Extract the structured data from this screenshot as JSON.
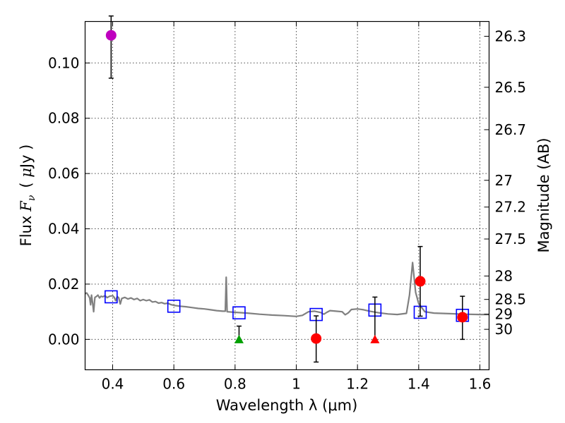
{
  "chart_data": {
    "type": "scatter",
    "xlabel": "Wavelength  λ (μm)",
    "ylabel": "Flux  F_ν  ( μJy )",
    "ylabel_parts": {
      "flux": "Flux",
      "F": "F",
      "nu": "ν",
      "unit_open": "( ",
      "mu": "μ",
      "unit": "Jy )"
    },
    "y2label": "Magnitude (AB)",
    "xlim": [
      0.31,
      1.63
    ],
    "ylim": [
      -0.011,
      0.115
    ],
    "grid": true,
    "x_ticks": [
      {
        "value": 0.4,
        "label": "0.4"
      },
      {
        "value": 0.6,
        "label": "0.6"
      },
      {
        "value": 0.8,
        "label": "0.8"
      },
      {
        "value": 1.0,
        "label": "1"
      },
      {
        "value": 1.2,
        "label": "1.2"
      },
      {
        "value": 1.4,
        "label": "1.4"
      },
      {
        "value": 1.6,
        "label": "1.6"
      }
    ],
    "y_ticks": [
      {
        "value": 0.0,
        "label": "0.00"
      },
      {
        "value": 0.02,
        "label": "0.02"
      },
      {
        "value": 0.04,
        "label": "0.04"
      },
      {
        "value": 0.06,
        "label": "0.06"
      },
      {
        "value": 0.08,
        "label": "0.08"
      },
      {
        "value": 0.1,
        "label": "0.10"
      }
    ],
    "mag_ticks": [
      {
        "mag": 26.3,
        "label": "26.3"
      },
      {
        "mag": 26.5,
        "label": "26.5"
      },
      {
        "mag": 26.7,
        "label": "26.7"
      },
      {
        "mag": 27.0,
        "label": "27"
      },
      {
        "mag": 27.2,
        "label": "27.2"
      },
      {
        "mag": 27.5,
        "label": "27.5"
      },
      {
        "mag": 28.0,
        "label": "28"
      },
      {
        "mag": 28.5,
        "label": "28.5"
      },
      {
        "mag": 29.0,
        "label": "29"
      },
      {
        "mag": 30.0,
        "label": "30"
      }
    ],
    "series": [
      {
        "name": "model_sed",
        "kind": "line",
        "color": "#808080",
        "points": [
          [
            0.31,
            0.0165
          ],
          [
            0.315,
            0.0168
          ],
          [
            0.32,
            0.016
          ],
          [
            0.325,
            0.015
          ],
          [
            0.328,
            0.0125
          ],
          [
            0.331,
            0.016
          ],
          [
            0.335,
            0.0128
          ],
          [
            0.338,
            0.01
          ],
          [
            0.342,
            0.0152
          ],
          [
            0.347,
            0.0155
          ],
          [
            0.352,
            0.016
          ],
          [
            0.357,
            0.015
          ],
          [
            0.362,
            0.0156
          ],
          [
            0.368,
            0.0154
          ],
          [
            0.375,
            0.0158
          ],
          [
            0.382,
            0.0151
          ],
          [
            0.39,
            0.0156
          ],
          [
            0.4,
            0.0158
          ],
          [
            0.405,
            0.0152
          ],
          [
            0.41,
            0.014
          ],
          [
            0.415,
            0.0155
          ],
          [
            0.42,
            0.015
          ],
          [
            0.425,
            0.0128
          ],
          [
            0.43,
            0.0148
          ],
          [
            0.44,
            0.0152
          ],
          [
            0.45,
            0.0146
          ],
          [
            0.46,
            0.015
          ],
          [
            0.47,
            0.0144
          ],
          [
            0.48,
            0.0148
          ],
          [
            0.49,
            0.014
          ],
          [
            0.5,
            0.0144
          ],
          [
            0.51,
            0.014
          ],
          [
            0.52,
            0.0143
          ],
          [
            0.53,
            0.0135
          ],
          [
            0.54,
            0.0137
          ],
          [
            0.55,
            0.0131
          ],
          [
            0.56,
            0.0133
          ],
          [
            0.57,
            0.0129
          ],
          [
            0.58,
            0.0131
          ],
          [
            0.59,
            0.0126
          ],
          [
            0.6,
            0.0123
          ],
          [
            0.62,
            0.012
          ],
          [
            0.64,
            0.0118
          ],
          [
            0.66,
            0.0115
          ],
          [
            0.68,
            0.0112
          ],
          [
            0.7,
            0.011
          ],
          [
            0.72,
            0.0107
          ],
          [
            0.74,
            0.0104
          ],
          [
            0.76,
            0.0102
          ],
          [
            0.768,
            0.0102
          ],
          [
            0.771,
            0.0225
          ],
          [
            0.774,
            0.01
          ],
          [
            0.8,
            0.0098
          ],
          [
            0.84,
            0.0095
          ],
          [
            0.88,
            0.0091
          ],
          [
            0.92,
            0.0088
          ],
          [
            0.96,
            0.0086
          ],
          [
            1.0,
            0.0083
          ],
          [
            1.02,
            0.0087
          ],
          [
            1.04,
            0.01
          ],
          [
            1.06,
            0.0102
          ],
          [
            1.08,
            0.0097
          ],
          [
            1.09,
            0.0091
          ],
          [
            1.1,
            0.0098
          ],
          [
            1.11,
            0.0104
          ],
          [
            1.13,
            0.0102
          ],
          [
            1.15,
            0.01
          ],
          [
            1.16,
            0.0089
          ],
          [
            1.17,
            0.0096
          ],
          [
            1.18,
            0.0108
          ],
          [
            1.2,
            0.011
          ],
          [
            1.22,
            0.0107
          ],
          [
            1.24,
            0.0102
          ],
          [
            1.27,
            0.0096
          ],
          [
            1.3,
            0.0092
          ],
          [
            1.33,
            0.009
          ],
          [
            1.36,
            0.0094
          ],
          [
            1.37,
            0.016
          ],
          [
            1.38,
            0.0278
          ],
          [
            1.39,
            0.017
          ],
          [
            1.4,
            0.013
          ],
          [
            1.42,
            0.01
          ],
          [
            1.45,
            0.0095
          ],
          [
            1.5,
            0.0093
          ],
          [
            1.55,
            0.0091
          ],
          [
            1.6,
            0.009
          ],
          [
            1.63,
            0.009
          ]
        ]
      },
      {
        "name": "model_photometry",
        "kind": "open_square",
        "color": "#0000ff",
        "points": [
          [
            0.395,
            0.0154
          ],
          [
            0.6,
            0.012
          ],
          [
            0.813,
            0.0096
          ],
          [
            1.065,
            0.009
          ],
          [
            1.257,
            0.0106
          ],
          [
            1.405,
            0.0098
          ],
          [
            1.543,
            0.0087
          ]
        ]
      },
      {
        "name": "detection_purple",
        "kind": "circle",
        "color": "#bf00bf",
        "points": [
          {
            "x": 0.395,
            "y": 0.11,
            "err_lo": 0.0155,
            "err_hi": 0.007
          }
        ]
      },
      {
        "name": "observed_red",
        "kind": "circle",
        "color": "#ff0000",
        "points": [
          {
            "x": 1.065,
            "y": 0.0003,
            "err_lo": 0.0085,
            "err_hi": 0.0082
          },
          {
            "x": 1.405,
            "y": 0.021,
            "err_lo": 0.0126,
            "err_hi": 0.0126
          },
          {
            "x": 1.543,
            "y": 0.008,
            "err_lo": 0.008,
            "err_hi": 0.0076
          }
        ]
      },
      {
        "name": "upper_limit_green",
        "kind": "triangle",
        "color": "#00a000",
        "points": [
          {
            "x": 0.813,
            "y": 0.0,
            "err_lo": 0.0,
            "err_hi": 0.0048
          }
        ]
      },
      {
        "name": "upper_limit_red",
        "kind": "triangle",
        "color": "#ff0000",
        "points": [
          {
            "x": 1.257,
            "y": 0.0,
            "err_lo": 0.0,
            "err_hi": 0.0153
          }
        ]
      }
    ]
  }
}
